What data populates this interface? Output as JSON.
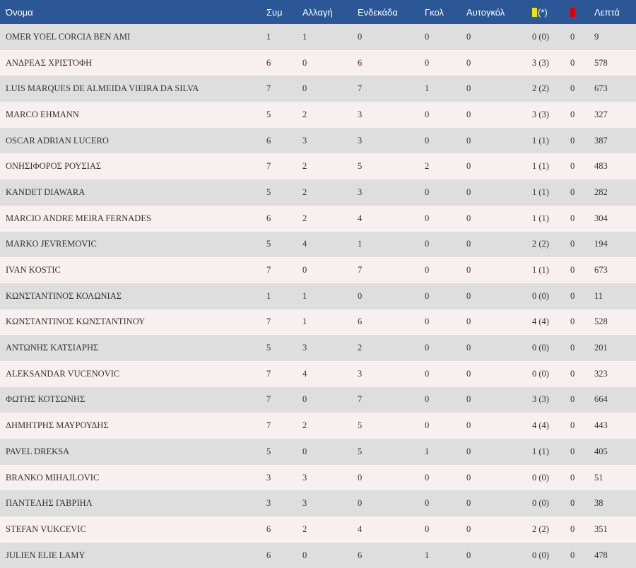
{
  "colors": {
    "header_bg": "#2b5796",
    "row_odd": "#dedede",
    "row_even": "#f8eff0",
    "yellow_card": "#f2e200",
    "red_card": "#e00000"
  },
  "header": {
    "name": "Όνομα",
    "apps": "Συμ",
    "subs": "Αλλαγή",
    "starts": "Ενδεκάδα",
    "goals": "Γκολ",
    "own_goals": "Αυτογκόλ",
    "yellow_suffix": "(*)",
    "minutes": "Λεπτά",
    "yellow_icon": "yellow-card-icon",
    "red_icon": "red-card-icon"
  },
  "rows": [
    {
      "name": "OMER YOEL CORCIA BEN AMI",
      "apps": "1",
      "subs": "1",
      "starts": "0",
      "goals": "0",
      "own_goals": "0",
      "yellow": "0 (0)",
      "red": "0",
      "minutes": "9"
    },
    {
      "name": "ΑΝΔΡΕΑΣ ΧΡΙΣΤΟΦΗ",
      "apps": "6",
      "subs": "0",
      "starts": "6",
      "goals": "0",
      "own_goals": "0",
      "yellow": "3 (3)",
      "red": "0",
      "minutes": "578"
    },
    {
      "name": "LUIS MARQUES DE ALMEIDA VIEIRA DA SILVA",
      "apps": "7",
      "subs": "0",
      "starts": "7",
      "goals": "1",
      "own_goals": "0",
      "yellow": "2 (2)",
      "red": "0",
      "minutes": "673"
    },
    {
      "name": "MARCO EHMANN",
      "apps": "5",
      "subs": "2",
      "starts": "3",
      "goals": "0",
      "own_goals": "0",
      "yellow": "3 (3)",
      "red": "0",
      "minutes": "327"
    },
    {
      "name": "OSCAR ADRIAN LUCERO",
      "apps": "6",
      "subs": "3",
      "starts": "3",
      "goals": "0",
      "own_goals": "0",
      "yellow": "1 (1)",
      "red": "0",
      "minutes": "387"
    },
    {
      "name": "ΟΝΗΣΙΦΟΡΟΣ ΡΟΥΣΙΑΣ",
      "apps": "7",
      "subs": "2",
      "starts": "5",
      "goals": "2",
      "own_goals": "0",
      "yellow": "1 (1)",
      "red": "0",
      "minutes": "483"
    },
    {
      "name": "KANDET DIAWARA",
      "apps": "5",
      "subs": "2",
      "starts": "3",
      "goals": "0",
      "own_goals": "0",
      "yellow": "1 (1)",
      "red": "0",
      "minutes": "282"
    },
    {
      "name": "MARCIO ANDRE MEIRA FERNADES",
      "apps": "6",
      "subs": "2",
      "starts": "4",
      "goals": "0",
      "own_goals": "0",
      "yellow": "1 (1)",
      "red": "0",
      "minutes": "304"
    },
    {
      "name": "MARKO JEVREMOVIC",
      "apps": "5",
      "subs": "4",
      "starts": "1",
      "goals": "0",
      "own_goals": "0",
      "yellow": "2 (2)",
      "red": "0",
      "minutes": "194"
    },
    {
      "name": "IVAN KOSTIC",
      "apps": "7",
      "subs": "0",
      "starts": "7",
      "goals": "0",
      "own_goals": "0",
      "yellow": "1 (1)",
      "red": "0",
      "minutes": "673"
    },
    {
      "name": "ΚΩΝΣΤΑΝΤΙΝΟΣ ΚΟΛΩΝΙΑΣ",
      "apps": "1",
      "subs": "1",
      "starts": "0",
      "goals": "0",
      "own_goals": "0",
      "yellow": "0 (0)",
      "red": "0",
      "minutes": "11"
    },
    {
      "name": "ΚΩΝΣΤΑΝΤΙΝΟΣ ΚΩΝΣΤΑΝΤΙΝΟΥ",
      "apps": "7",
      "subs": "1",
      "starts": "6",
      "goals": "0",
      "own_goals": "0",
      "yellow": "4 (4)",
      "red": "0",
      "minutes": "528"
    },
    {
      "name": "ΑΝΤΩΝΗΣ ΚΑΤΣΙΑΡΗΣ",
      "apps": "5",
      "subs": "3",
      "starts": "2",
      "goals": "0",
      "own_goals": "0",
      "yellow": "0 (0)",
      "red": "0",
      "minutes": "201"
    },
    {
      "name": "ALEKSANDAR VUCENOVIC",
      "apps": "7",
      "subs": "4",
      "starts": "3",
      "goals": "0",
      "own_goals": "0",
      "yellow": "0 (0)",
      "red": "0",
      "minutes": "323"
    },
    {
      "name": "ΦΩΤΗΣ ΚΟΤΣΩΝΗΣ",
      "apps": "7",
      "subs": "0",
      "starts": "7",
      "goals": "0",
      "own_goals": "0",
      "yellow": "3 (3)",
      "red": "0",
      "minutes": "664"
    },
    {
      "name": "ΔΗΜΗΤΡΗΣ ΜΑΥΡΟΥΔΗΣ",
      "apps": "7",
      "subs": "2",
      "starts": "5",
      "goals": "0",
      "own_goals": "0",
      "yellow": "4 (4)",
      "red": "0",
      "minutes": "443"
    },
    {
      "name": "PAVEL DREKSA",
      "apps": "5",
      "subs": "0",
      "starts": "5",
      "goals": "1",
      "own_goals": "0",
      "yellow": "1 (1)",
      "red": "0",
      "minutes": "405"
    },
    {
      "name": "BRANKO MIHAJLOVIC",
      "apps": "3",
      "subs": "3",
      "starts": "0",
      "goals": "0",
      "own_goals": "0",
      "yellow": "0 (0)",
      "red": "0",
      "minutes": "51"
    },
    {
      "name": "ΠΑΝΤΕΛΗΣ ΓΑΒΡΙΗΛ",
      "apps": "3",
      "subs": "3",
      "starts": "0",
      "goals": "0",
      "own_goals": "0",
      "yellow": "0 (0)",
      "red": "0",
      "minutes": "38"
    },
    {
      "name": "STEFAN VUKCEVIC",
      "apps": "6",
      "subs": "2",
      "starts": "4",
      "goals": "0",
      "own_goals": "0",
      "yellow": "2 (2)",
      "red": "0",
      "minutes": "351"
    },
    {
      "name": "JULIEN ELIE LAMY",
      "apps": "6",
      "subs": "0",
      "starts": "6",
      "goals": "1",
      "own_goals": "0",
      "yellow": "0 (0)",
      "red": "0",
      "minutes": "478"
    }
  ]
}
